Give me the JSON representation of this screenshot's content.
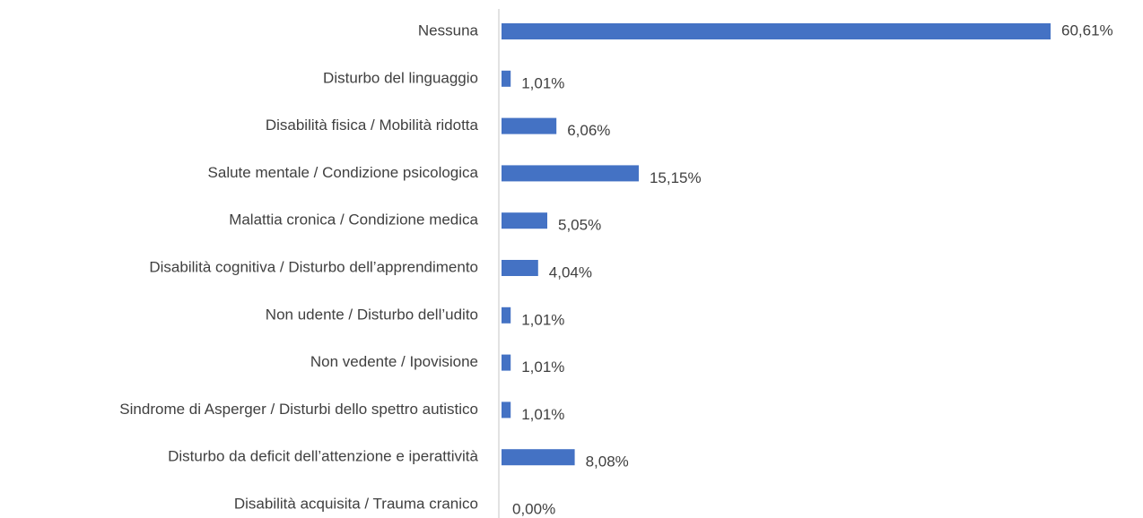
{
  "chart_data": {
    "type": "bar",
    "orientation": "horizontal",
    "color": "#4472c4",
    "categories": [
      "Nessuna",
      "Disturbo del linguaggio",
      "Disabilità fisica / Mobilità ridotta",
      "Salute mentale / Condizione psicologica",
      "Malattia cronica / Condizione medica",
      "Disabilità cognitiva / Disturbo dell’apprendimento",
      "Non udente / Disturbo dell’udito",
      "Non vedente / Ipovisione",
      "Sindrome di Asperger / Disturbi dello spettro autistico",
      "Disturbo da deficit dell’attenzione e iperattività",
      "Disabilità acquisita / Trauma cranico"
    ],
    "values": [
      60.61,
      1.01,
      6.06,
      15.15,
      5.05,
      4.04,
      1.01,
      1.01,
      1.01,
      8.08,
      0.0
    ],
    "value_labels": [
      "60,61%",
      "1,01%",
      "6,06%",
      "15,15%",
      "5,05%",
      "4,04%",
      "1,01%",
      "1,01%",
      "1,01%",
      "8,08%",
      "0,00%"
    ]
  }
}
